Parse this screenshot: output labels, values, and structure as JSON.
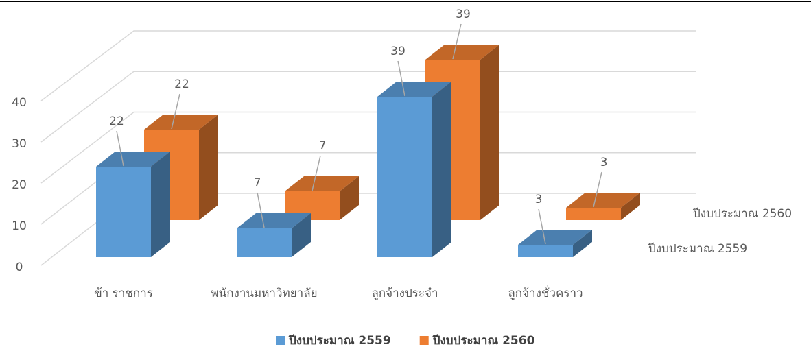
{
  "chart_data": {
    "type": "bar3d",
    "categories": [
      "ข้า ราชการ",
      "พนักงานมหาวิทยาลัย",
      "ลูกจ้างประจำ",
      "ลูกจ้างชั่วคราว"
    ],
    "series": [
      {
        "name": "ปีงบประมาณ 2559",
        "color": "#5b9bd5",
        "values": [
          22,
          7,
          39,
          3
        ]
      },
      {
        "name": "ปีงบประมาณ 2560",
        "color": "#ed7d31",
        "values": [
          22,
          7,
          39,
          3
        ]
      }
    ],
    "ylim": [
      0,
      40
    ],
    "yticks": [
      0,
      10,
      20,
      30,
      40
    ],
    "grid": true,
    "legend": "bottom"
  }
}
